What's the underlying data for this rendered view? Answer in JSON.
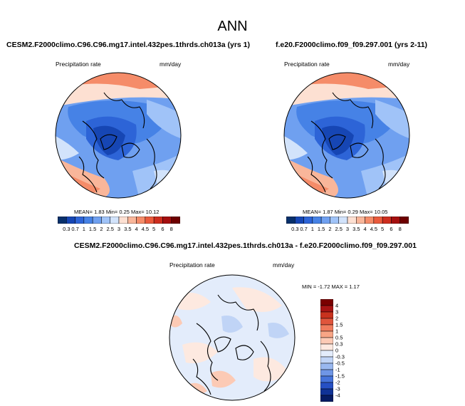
{
  "main_title": "ANN",
  "panels": [
    {
      "title": "CESM2.F2000climo.C96.C96.mg17.intel.432pes.1thrds.ch013a (yrs 1)",
      "variable": "Precipitation rate",
      "units": "mm/day",
      "stats_label": "MEAN=  1.83  Min=  0.25  Max=  10.12"
    },
    {
      "title": "f.e20.F2000climo.f09_f09.297.001 (yrs 2-11)",
      "variable": "Precipitation rate",
      "units": "mm/day",
      "stats_label": "MEAN=  1.87  Min=  0.29  Max=  10.05"
    },
    {
      "title": "CESM2.F2000climo.C96.C96.mg17.intel.432pes.1thrds.ch013a - f.e20.F2000climo.f09_f09.297.001",
      "variable": "Precipitation rate",
      "units": "mm/day",
      "stats_label": "MIN =  -1.72  MAX =   1.17"
    }
  ],
  "colorbar_abs": {
    "labels": [
      "0.3",
      "0.7",
      "1",
      "1.5",
      "2",
      "2.5",
      "3",
      "3.5",
      "4",
      "4.5",
      "5",
      "6",
      "8"
    ],
    "colors": [
      "#08306b",
      "#1646b4",
      "#2d64d7",
      "#4682e6",
      "#6fa0f0",
      "#a0c3f8",
      "#d2e3fb",
      "#fde0d2",
      "#f9b69a",
      "#f58c69",
      "#ea5a3c",
      "#cd2d1e",
      "#a50f0f",
      "#6e0000"
    ]
  },
  "colorbar_diff": {
    "labels": [
      "4",
      "3",
      "2",
      "1.5",
      "1",
      "0.5",
      "0.3",
      "0",
      "-0.3",
      "-0.5",
      "-1",
      "-1.5",
      "-2",
      "-3",
      "-4"
    ],
    "colors": [
      "#7a0000",
      "#a81414",
      "#c8321e",
      "#e0553c",
      "#f07c5e",
      "#f8a585",
      "#fccab5",
      "#fde9e0",
      "#e3ecfb",
      "#c0d4f6",
      "#99b8f0",
      "#6f96e6",
      "#4674db",
      "#2650c4",
      "#103296",
      "#061c64"
    ]
  }
}
